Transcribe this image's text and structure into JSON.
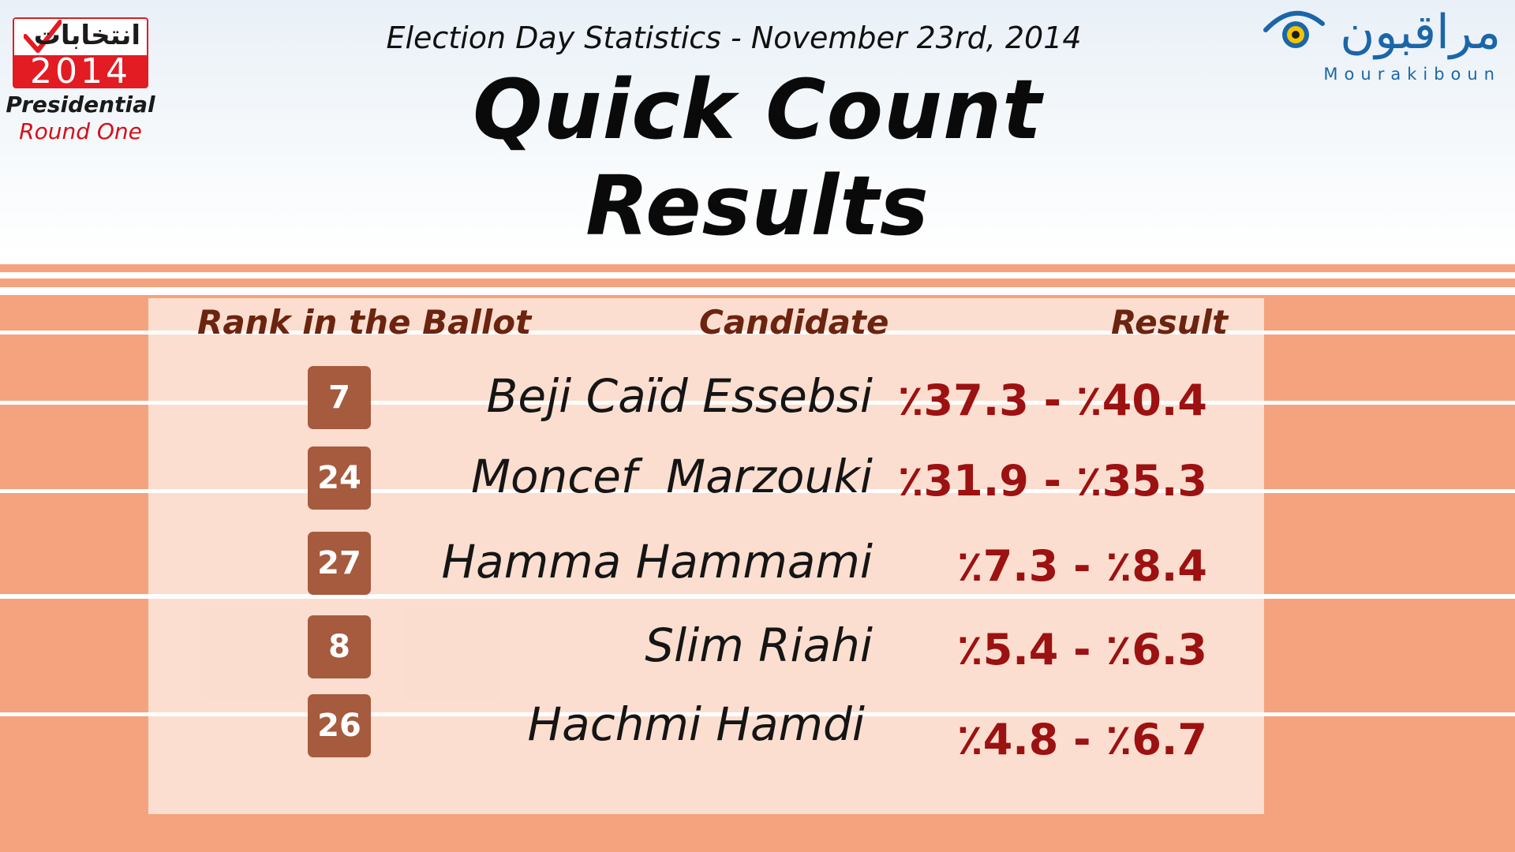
{
  "branding_left": {
    "arabic": "انتخابات",
    "year": "2014",
    "line1": "Presidential",
    "line2": "Round One"
  },
  "header": {
    "subtitle": "Election Day Statistics - November 23rd, 2014",
    "title": "Quick Count Results"
  },
  "branding_right": {
    "arabic": "مراقبون",
    "latin": "Mourakiboun"
  },
  "table": {
    "headers": {
      "rank": "Rank in the Ballot",
      "candidate": "Candidate",
      "result": "Result"
    },
    "rows": [
      {
        "rank": "7",
        "candidate": "Beji Caïd Essebsi",
        "result": "٪37.3 - ٪40.4"
      },
      {
        "rank": "24",
        "candidate": "Moncef  Marzouki",
        "result": "٪31.9 - ٪35.3"
      },
      {
        "rank": "27",
        "candidate": "Hamma Hammami",
        "result": "٪7.3 - ٪8.4"
      },
      {
        "rank": "8",
        "candidate": "Slim Riahi",
        "result": "٪5.4 - ٪6.3"
      },
      {
        "rank": "26",
        "candidate": "Hachmi Hamdi",
        "result": "٪4.8 - ٪6.7"
      }
    ]
  },
  "colors": {
    "background_salmon": "#f4a37e",
    "badge": "#a65a3e",
    "result_text": "#9c1111",
    "header_text": "#6b2410",
    "brand_blue": "#1b66a8",
    "brand_red": "#e31b23"
  },
  "icons": {
    "brand_left_mark": "check-mark-icon",
    "brand_right_mark": "eye-icon"
  }
}
